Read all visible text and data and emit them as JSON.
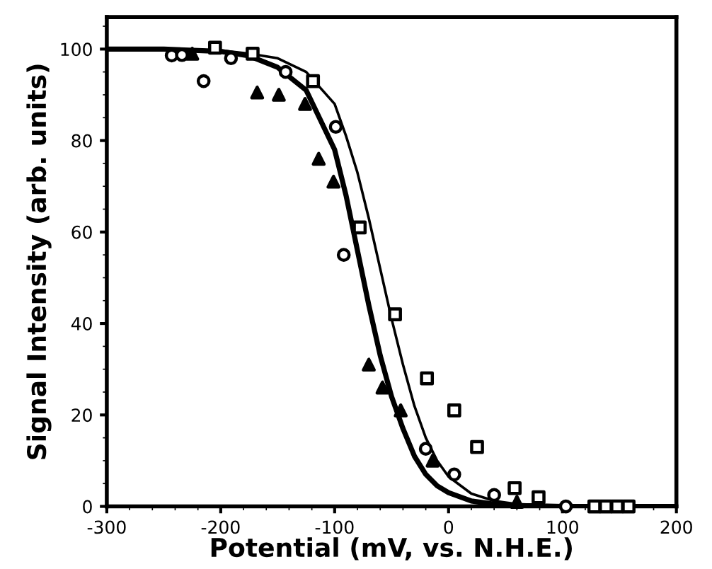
{
  "chart_data": {
    "type": "scatter",
    "xlabel": "Potential (mV, vs. N.H.E.)",
    "ylabel": "Signal Intensity (arb. units)",
    "xlim": [
      -300,
      200
    ],
    "xticks": [
      -300,
      -200,
      -100,
      0,
      100,
      200
    ],
    "ylim": [
      0,
      107
    ],
    "yticks": [
      0,
      20,
      40,
      60,
      80,
      100
    ],
    "grid": false,
    "legend": false,
    "series": [
      {
        "marker": "circle",
        "color": "#000000",
        "x": [
          -243,
          -234,
          -215,
          -191,
          -143,
          -99,
          -92,
          -20,
          5,
          40,
          103
        ],
        "values": [
          98.6,
          98.7,
          93,
          98,
          95,
          83,
          55,
          12.6,
          7,
          2.5,
          0
        ]
      },
      {
        "marker": "square",
        "color": "#000000",
        "x": [
          -205,
          -172,
          -119,
          -78,
          -47,
          -19,
          5,
          25,
          58,
          79,
          128,
          138,
          148,
          158
        ],
        "values": [
          100.3,
          99,
          93,
          61,
          42,
          28,
          21,
          13,
          4,
          2,
          0,
          0,
          0,
          0
        ]
      },
      {
        "marker": "triangle",
        "color": "#000000",
        "x": [
          -225,
          -168,
          -149,
          -126,
          -114,
          -101,
          -70,
          -58,
          -42,
          -14,
          60
        ],
        "values": [
          99,
          90.5,
          90,
          88,
          76,
          71,
          31,
          26,
          21,
          10,
          1
        ]
      },
      {
        "type": "line",
        "line_style": "solid",
        "color": "#000000",
        "x": [
          -300,
          -250,
          -200,
          -175,
          -150,
          -125,
          -100,
          -90,
          -80,
          -70,
          -60,
          -50,
          -40,
          -30,
          -20,
          -10,
          0,
          20,
          40,
          60,
          100,
          200
        ],
        "values": [
          100,
          100,
          99.5,
          98.5,
          96,
          91,
          78,
          68,
          56,
          44,
          33,
          24,
          17,
          11,
          7,
          4.5,
          3,
          1.2,
          0.5,
          0.2,
          0,
          0
        ]
      },
      {
        "type": "line",
        "line_style": "solid",
        "color": "#000000",
        "x": [
          -300,
          -250,
          -200,
          -175,
          -150,
          -125,
          -100,
          -90,
          -80,
          -70,
          -60,
          -50,
          -40,
          -30,
          -20,
          -10,
          0,
          20,
          40,
          60,
          100,
          200
        ],
        "values": [
          100,
          100,
          99.7,
          99,
          98,
          95,
          88,
          81,
          73,
          63,
          52,
          41,
          31,
          22,
          15,
          10,
          6.5,
          2.8,
          1.2,
          0.5,
          0.1,
          0
        ]
      }
    ]
  }
}
